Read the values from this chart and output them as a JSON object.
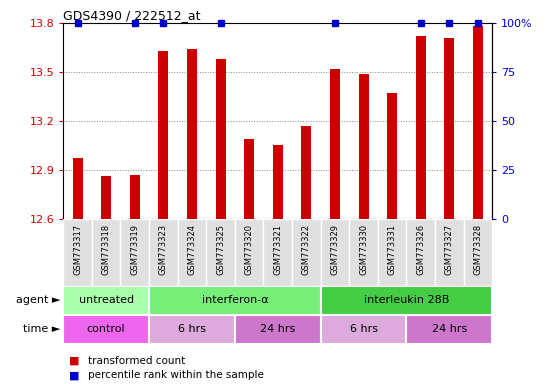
{
  "title": "GDS4390 / 222512_at",
  "samples": [
    "GSM773317",
    "GSM773318",
    "GSM773319",
    "GSM773323",
    "GSM773324",
    "GSM773325",
    "GSM773320",
    "GSM773321",
    "GSM773322",
    "GSM773329",
    "GSM773330",
    "GSM773331",
    "GSM773326",
    "GSM773327",
    "GSM773328"
  ],
  "bar_values": [
    12.97,
    12.86,
    12.87,
    13.63,
    13.64,
    13.58,
    13.09,
    13.05,
    13.17,
    13.52,
    13.49,
    13.37,
    13.72,
    13.71,
    13.78
  ],
  "percentile_flags": [
    true,
    false,
    true,
    true,
    false,
    true,
    false,
    false,
    false,
    true,
    false,
    false,
    true,
    true,
    true
  ],
  "bar_color": "#cc0000",
  "percentile_color": "#0000cc",
  "ylim": [
    12.6,
    13.8
  ],
  "yticks": [
    12.6,
    12.9,
    13.2,
    13.5,
    13.8
  ],
  "right_yticks": [
    0,
    25,
    50,
    75,
    100
  ],
  "right_yticklabels": [
    "0",
    "25",
    "50",
    "75",
    "100%"
  ],
  "gridcolor": "#888888",
  "agent_groups": [
    {
      "label": "untreated",
      "start": 0,
      "end": 3,
      "color": "#aaffaa"
    },
    {
      "label": "interferon-α",
      "start": 3,
      "end": 9,
      "color": "#77ee77"
    },
    {
      "label": "interleukin 28B",
      "start": 9,
      "end": 15,
      "color": "#44cc44"
    }
  ],
  "time_groups": [
    {
      "label": "control",
      "start": 0,
      "end": 3,
      "color": "#ee66ee"
    },
    {
      "label": "6 hrs",
      "start": 3,
      "end": 6,
      "color": "#ddaadd"
    },
    {
      "label": "24 hrs",
      "start": 6,
      "end": 9,
      "color": "#cc77cc"
    },
    {
      "label": "6 hrs",
      "start": 9,
      "end": 12,
      "color": "#ddaadd"
    },
    {
      "label": "24 hrs",
      "start": 12,
      "end": 15,
      "color": "#cc77cc"
    }
  ],
  "legend_items": [
    {
      "label": "transformed count",
      "color": "#cc0000"
    },
    {
      "label": "percentile rank within the sample",
      "color": "#0000cc"
    }
  ],
  "background_color": "#ffffff"
}
